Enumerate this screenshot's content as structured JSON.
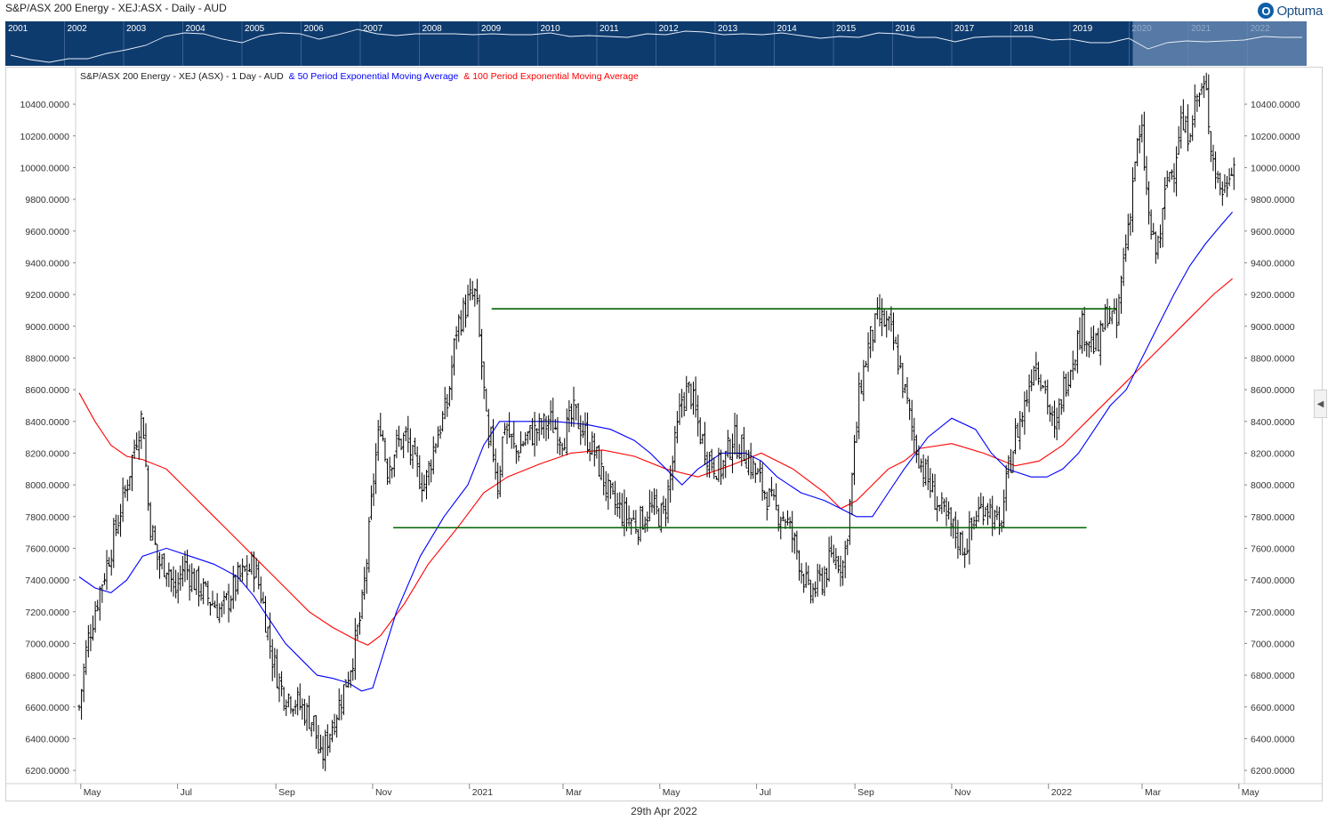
{
  "window": {
    "title": "S&P/ASX 200 Energy - XEJ:ASX - Daily - AUD",
    "brand": "Optuma",
    "footer_date": "29th Apr 2022",
    "collapse_icon": "chevron-left-icon"
  },
  "overview": {
    "years": [
      "2001",
      "2002",
      "2003",
      "2004",
      "2005",
      "2006",
      "2007",
      "2008",
      "2009",
      "2010",
      "2011",
      "2012",
      "2013",
      "2014",
      "2015",
      "2016",
      "2017",
      "2018",
      "2019",
      "2020",
      "2021",
      "2022"
    ]
  },
  "legend": {
    "main": "S&P/ASX 200 Energy - XEJ (ASX) - 1 Day - AUD",
    "ema50": "& 50 Period Exponential Moving Average",
    "ema100": "& 100 Period Exponential Moving Average"
  },
  "colors": {
    "price": "#000000",
    "ema50": "#0000ff",
    "ema100": "#ff0000",
    "levels": "#006400",
    "overview_bg": "#0e3b6e",
    "overview_highlight": "#6f8fb8"
  },
  "chart_data": {
    "type": "line",
    "title": "S&P/ASX 200 Energy - XEJ (ASX) - 1 Day - AUD",
    "xlabel": "",
    "ylabel": "",
    "ylim": [
      6150,
      10580
    ],
    "x_range_days": [
      0,
      730
    ],
    "y_ticks": [
      "10400.0000",
      "10200.0000",
      "10000.0000",
      "9800.0000",
      "9600.0000",
      "9400.0000",
      "9200.0000",
      "9000.0000",
      "8800.0000",
      "8600.0000",
      "8400.0000",
      "8200.0000",
      "8000.0000",
      "7800.0000",
      "7600.0000",
      "7400.0000",
      "7200.0000",
      "7000.0000",
      "6800.0000",
      "6600.0000",
      "6400.0000",
      "6200.0000"
    ],
    "x_ticks": [
      {
        "label": "May",
        "day": 1
      },
      {
        "label": "Jul",
        "day": 62
      },
      {
        "label": "Sep",
        "day": 124
      },
      {
        "label": "Nov",
        "day": 185
      },
      {
        "label": "2021",
        "day": 246
      },
      {
        "label": "Mar",
        "day": 305
      },
      {
        "label": "May",
        "day": 366
      },
      {
        "label": "Jul",
        "day": 427
      },
      {
        "label": "Sep",
        "day": 489
      },
      {
        "label": "Nov",
        "day": 550
      },
      {
        "label": "2022",
        "day": 611
      },
      {
        "label": "Mar",
        "day": 670
      },
      {
        "label": "May",
        "day": 731
      }
    ],
    "levels": [
      {
        "value": 9110,
        "from_day": 260,
        "to_day": 654
      },
      {
        "value": 7730,
        "from_day": 198,
        "to_day": 635
      }
    ],
    "series": [
      {
        "name": "S&P/ASX 200 Energy - XEJ (ASX) - 1 Day - AUD",
        "x": [
          0,
          5,
          12,
          20,
          30,
          36,
          40,
          44,
          50,
          56,
          60,
          66,
          72,
          80,
          90,
          100,
          110,
          115,
          122,
          128,
          135,
          140,
          148,
          152,
          158,
          165,
          172,
          178,
          182,
          186,
          190,
          194,
          200,
          206,
          212,
          218,
          225,
          232,
          238,
          245,
          250,
          255,
          258,
          260,
          264,
          268,
          275,
          282,
          290,
          297,
          305,
          312,
          320,
          325,
          335,
          345,
          352,
          360,
          368,
          372,
          380,
          385,
          392,
          398,
          405,
          412,
          420,
          430,
          438,
          445,
          452,
          460,
          468,
          475,
          482,
          486,
          492,
          498,
          504,
          510,
          516,
          520,
          526,
          532,
          538,
          545,
          552,
          558,
          565,
          572,
          580,
          586,
          590,
          596,
          602,
          608,
          615,
          620,
          626,
          632,
          638,
          642,
          648,
          654,
          658,
          662,
          666,
          670,
          674,
          678,
          682,
          686,
          690,
          694,
          698,
          702,
          705,
          710,
          714,
          718,
          722,
          726,
          729
        ],
        "values": [
          6600,
          7000,
          7300,
          7600,
          8000,
          8300,
          8450,
          7800,
          7500,
          7500,
          7300,
          7500,
          7400,
          7300,
          7200,
          7400,
          7500,
          7300,
          6900,
          6700,
          6650,
          6600,
          6500,
          6250,
          6450,
          6650,
          6900,
          7200,
          7600,
          8100,
          8400,
          8100,
          8250,
          8300,
          8100,
          8000,
          8300,
          8500,
          9000,
          9150,
          9200,
          8600,
          8200,
          8300,
          8000,
          8400,
          8200,
          8300,
          8350,
          8400,
          8300,
          8450,
          8300,
          8200,
          7900,
          7800,
          7750,
          7850,
          7800,
          8000,
          8550,
          8600,
          8300,
          8150,
          8100,
          8300,
          8200,
          8000,
          7850,
          7800,
          7600,
          7300,
          7400,
          7550,
          7500,
          7900,
          8600,
          8900,
          9050,
          9000,
          8800,
          8600,
          8300,
          8100,
          7950,
          7800,
          7700,
          7600,
          7800,
          7900,
          7700,
          8100,
          8300,
          8500,
          8800,
          8650,
          8300,
          8600,
          8800,
          9000,
          8900,
          8850,
          9100,
          9000,
          9400,
          9700,
          10100,
          10200,
          9700,
          9450,
          9600,
          9950,
          10000,
          10300,
          10200,
          10350,
          10450,
          10500,
          10100,
          9900,
          9850,
          10050,
          10000
        ]
      },
      {
        "name": "50 Period Exponential Moving Average",
        "x": [
          0,
          10,
          20,
          30,
          40,
          55,
          70,
          85,
          100,
          110,
          120,
          130,
          140,
          150,
          160,
          170,
          178,
          185,
          200,
          215,
          230,
          245,
          255,
          265,
          280,
          300,
          320,
          335,
          350,
          360,
          370,
          380,
          390,
          405,
          420,
          430,
          440,
          455,
          470,
          480,
          490,
          500,
          510,
          520,
          535,
          550,
          565,
          575,
          585,
          600,
          610,
          620,
          630,
          640,
          650,
          660,
          670,
          680,
          690,
          700,
          710,
          720,
          727
        ],
        "values": [
          7420,
          7350,
          7320,
          7400,
          7550,
          7600,
          7550,
          7500,
          7420,
          7300,
          7150,
          7000,
          6900,
          6800,
          6780,
          6750,
          6700,
          6720,
          7200,
          7550,
          7800,
          8000,
          8250,
          8400,
          8400,
          8400,
          8380,
          8350,
          8280,
          8200,
          8100,
          8000,
          8100,
          8200,
          8200,
          8150,
          8050,
          7950,
          7900,
          7850,
          7800,
          7800,
          7950,
          8100,
          8300,
          8420,
          8350,
          8200,
          8100,
          8050,
          8050,
          8100,
          8200,
          8350,
          8500,
          8600,
          8800,
          9000,
          9200,
          9380,
          9520,
          9640,
          9720
        ]
      },
      {
        "name": "100 Period Exponential Moving Average",
        "x": [
          0,
          10,
          20,
          30,
          40,
          55,
          70,
          85,
          100,
          115,
          130,
          145,
          160,
          175,
          182,
          190,
          205,
          220,
          240,
          255,
          270,
          290,
          310,
          330,
          350,
          370,
          390,
          410,
          430,
          450,
          470,
          480,
          490,
          500,
          510,
          520,
          530,
          550,
          570,
          590,
          605,
          620,
          640,
          660,
          680,
          700,
          715,
          727
        ],
        "values": [
          8580,
          8400,
          8250,
          8180,
          8160,
          8100,
          7950,
          7800,
          7650,
          7500,
          7350,
          7200,
          7100,
          7020,
          6990,
          7050,
          7250,
          7500,
          7750,
          7950,
          8050,
          8130,
          8200,
          8220,
          8180,
          8100,
          8050,
          8120,
          8200,
          8100,
          7950,
          7850,
          7900,
          8000,
          8100,
          8150,
          8230,
          8260,
          8200,
          8120,
          8150,
          8250,
          8450,
          8650,
          8850,
          9050,
          9200,
          9300
        ]
      }
    ]
  }
}
